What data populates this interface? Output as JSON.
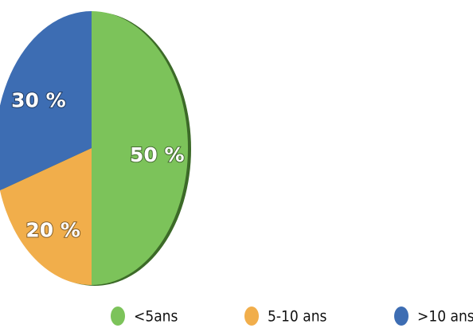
{
  "chart_data": {
    "type": "pie",
    "categories": [
      "<5ans",
      "5-10 ans",
      ">10 ans"
    ],
    "values": [
      50,
      20,
      30
    ],
    "value_labels": [
      "50 %",
      "20 %",
      "30 %"
    ],
    "colors": [
      "#7cc35a",
      "#f1ae4b",
      "#3d6db3"
    ],
    "legend": "bottom"
  }
}
